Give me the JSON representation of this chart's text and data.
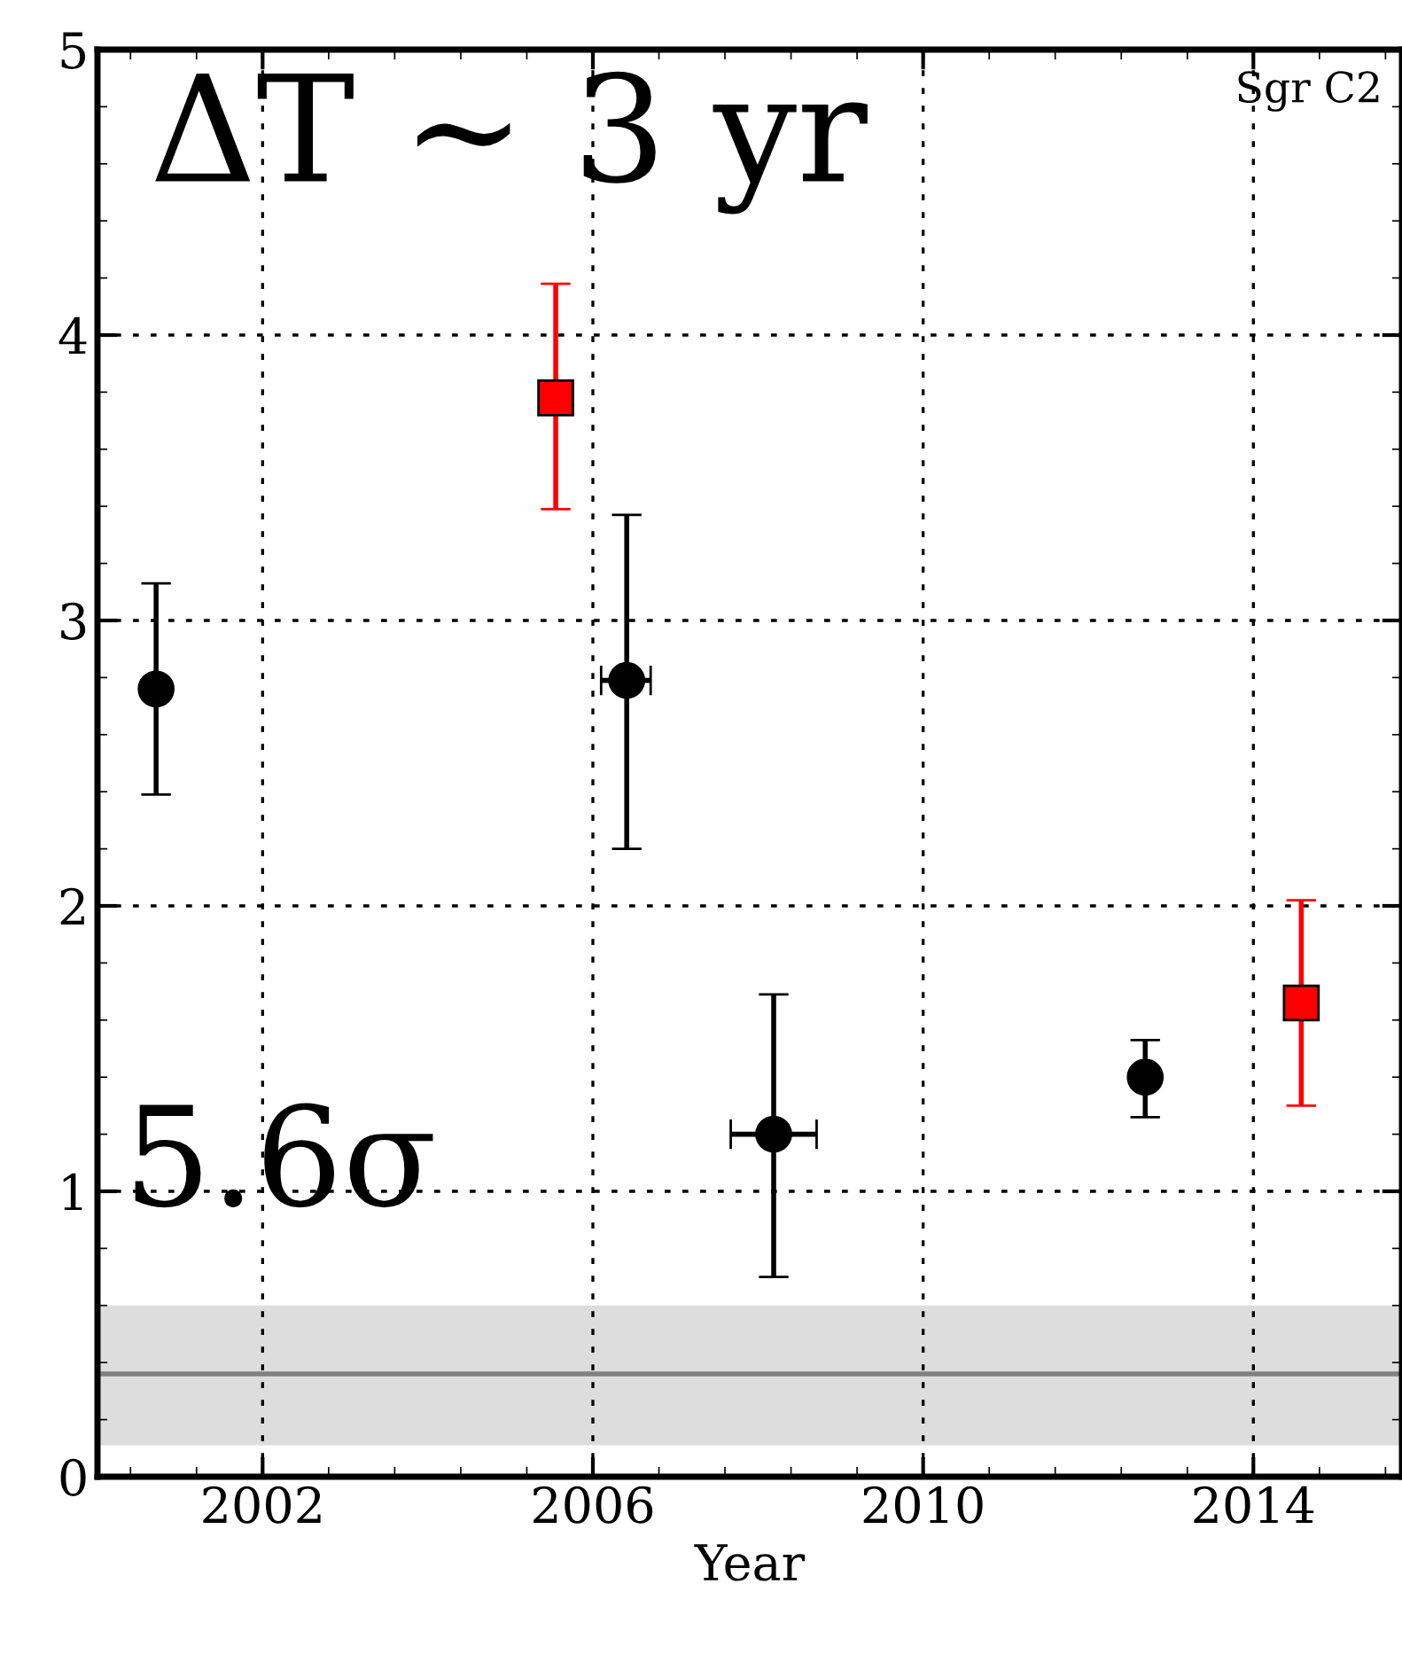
{
  "chart_data": {
    "type": "scatter",
    "xlabel": "Year",
    "annotations": [
      "ΔT ∼ 3 yr",
      "5.6σ",
      "Sgr C2"
    ],
    "series": [
      {
        "color": "#000000",
        "marker": "circle",
        "x": [
          2000.71,
          2006.41,
          2008.19,
          2012.69
        ],
        "values": [
          2.76,
          2.79,
          1.2,
          1.4
        ],
        "errors": [
          [
            2.39,
            3.13
          ],
          [
            2.2,
            3.37
          ],
          [
            0.7,
            1.69
          ],
          [
            1.26,
            1.53
          ]
        ],
        "xerrors": [
          null,
          [
            2006.1,
            2006.7
          ],
          [
            2007.67,
            2008.71
          ],
          null
        ]
      },
      {
        "color": "#ff0000",
        "marker": "square",
        "x": [
          2005.55,
          2014.58
        ],
        "values": [
          3.78,
          1.66
        ],
        "errors": [
          [
            3.39,
            4.18
          ],
          [
            1.3,
            2.02
          ]
        ]
      }
    ],
    "ref_lines": [
      {
        "axis": "y",
        "value": 0.36,
        "color": "#808080"
      }
    ],
    "bands": [
      {
        "axis": "y",
        "from": 0.11,
        "to": 0.6,
        "color": "#dddddd"
      }
    ],
    "xlim": [
      2000,
      2015.8
    ],
    "ylim": [
      0,
      5
    ],
    "xticks": [
      2002,
      2006,
      2010,
      2014
    ],
    "yticks": [
      0,
      1,
      2,
      3,
      4,
      5
    ],
    "grid": true
  }
}
